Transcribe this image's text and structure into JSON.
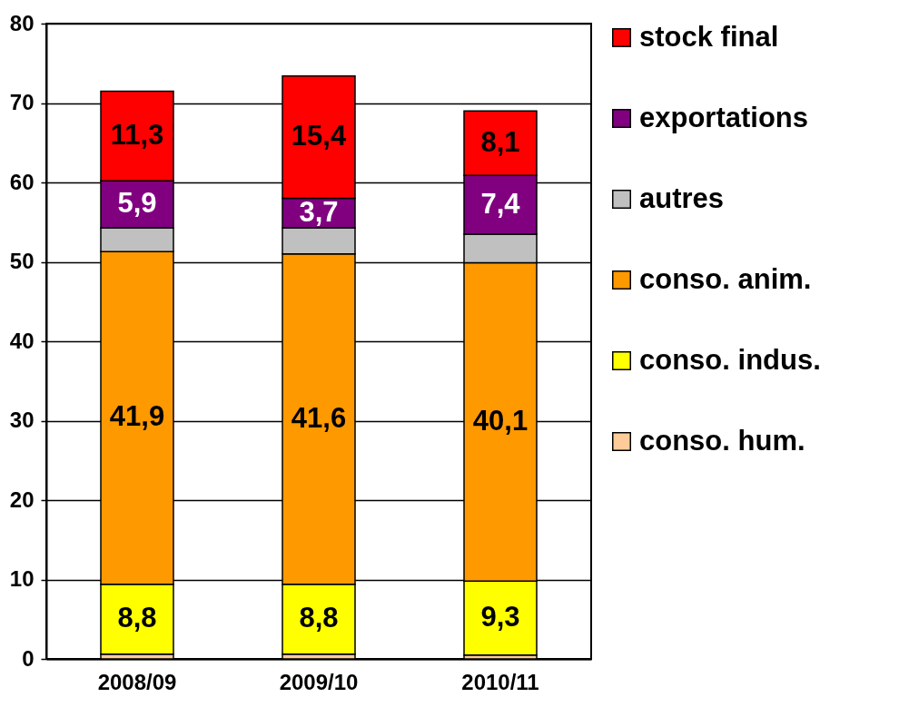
{
  "chart_data": {
    "type": "bar",
    "stacked": true,
    "categories": [
      "2008/09",
      "2009/10",
      "2010/11"
    ],
    "series": [
      {
        "name": "conso. hum.",
        "color": "#ffcc99",
        "values": [
          0.6,
          0.6,
          0.5
        ]
      },
      {
        "name": "conso. indus.",
        "color": "#ffff00",
        "values": [
          8.8,
          8.8,
          9.3
        ],
        "value_labels": [
          "8,8",
          "8,8",
          "9,3"
        ]
      },
      {
        "name": "conso. anim.",
        "color": "#ff9900",
        "values": [
          41.9,
          41.6,
          40.1
        ],
        "value_labels": [
          "41,9",
          "41,6",
          "40,1"
        ]
      },
      {
        "name": "autres",
        "color": "#c0c0c0",
        "values": [
          3.0,
          3.3,
          3.6
        ]
      },
      {
        "name": "exportations",
        "color": "#800080",
        "values": [
          5.9,
          3.7,
          7.4
        ],
        "value_labels": [
          "5,9",
          "3,7",
          "7,4"
        ]
      },
      {
        "name": "stock final",
        "color": "#ff0000",
        "values": [
          11.3,
          15.4,
          8.1
        ],
        "value_labels": [
          "11,3",
          "15,4",
          "8,1"
        ]
      }
    ],
    "ylim": [
      0,
      80
    ],
    "yticks": [
      0,
      10,
      20,
      30,
      40,
      50,
      60,
      70,
      80
    ],
    "grid": "y",
    "legend": "right"
  }
}
